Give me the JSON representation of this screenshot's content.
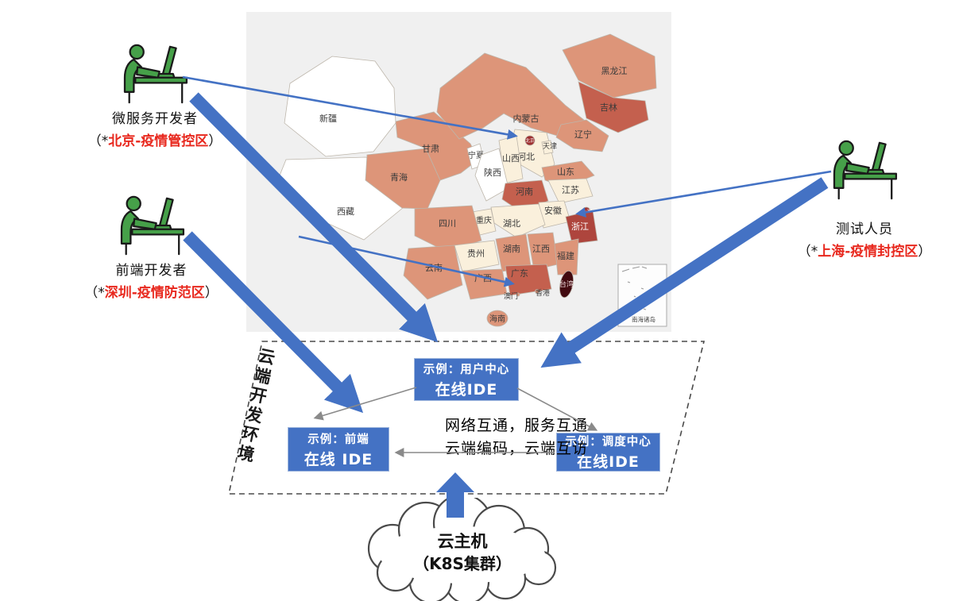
{
  "colors": {
    "accent_blue": "#4472C4",
    "alert_red": "#e8281e",
    "person_green": "#46a049",
    "connector_gray": "#8a8a8a",
    "map_palette": {
      "none": "#ffffff",
      "low": "#faf0dc",
      "mid": "#dd9579",
      "high": "#c4604e",
      "higher": "#ae453d",
      "city": "#9e2f2f",
      "max": "#420a10"
    }
  },
  "personas": [
    {
      "role": "微服务开发者",
      "location_prefix": "（*",
      "location": "北京-疫情管控区",
      "location_suffix": "）"
    },
    {
      "role": "前端开发者",
      "location_prefix": "（*",
      "location": "深圳-疫情防范区",
      "location_suffix": "）"
    },
    {
      "role": "测试人员",
      "location_prefix": "（*",
      "location": "上海-疫情封控区",
      "location_suffix": "）"
    }
  ],
  "map": {
    "inset_label": "南海诸岛",
    "provinces": [
      {
        "name": "新疆",
        "level": "none"
      },
      {
        "name": "西藏",
        "level": "none"
      },
      {
        "name": "青海",
        "level": "mid"
      },
      {
        "name": "甘肃",
        "level": "mid"
      },
      {
        "name": "内蒙古",
        "level": "mid"
      },
      {
        "name": "黑龙江",
        "level": "mid"
      },
      {
        "name": "吉林",
        "level": "high"
      },
      {
        "name": "辽宁",
        "level": "mid"
      },
      {
        "name": "河北",
        "level": "low"
      },
      {
        "name": "北京",
        "level": "city"
      },
      {
        "name": "天津",
        "level": "low"
      },
      {
        "name": "山西",
        "level": "low"
      },
      {
        "name": "山东",
        "level": "mid"
      },
      {
        "name": "宁夏",
        "level": "none"
      },
      {
        "name": "陕西",
        "level": "none"
      },
      {
        "name": "河南",
        "level": "high"
      },
      {
        "name": "江苏",
        "level": "low"
      },
      {
        "name": "安徽",
        "level": "low"
      },
      {
        "name": "上海",
        "level": "city"
      },
      {
        "name": "浙江",
        "level": "higher"
      },
      {
        "name": "湖北",
        "level": "low"
      },
      {
        "name": "重庆",
        "level": "low"
      },
      {
        "name": "四川",
        "level": "mid"
      },
      {
        "name": "湖南",
        "level": "mid"
      },
      {
        "name": "江西",
        "level": "mid"
      },
      {
        "name": "福建",
        "level": "mid"
      },
      {
        "name": "贵州",
        "level": "low"
      },
      {
        "name": "云南",
        "level": "mid"
      },
      {
        "name": "广西",
        "level": "mid"
      },
      {
        "name": "广东",
        "level": "high"
      },
      {
        "name": "香港",
        "level": "mid"
      },
      {
        "name": "澳门",
        "level": "mid"
      },
      {
        "name": "海南",
        "level": "mid"
      },
      {
        "name": "台湾",
        "level": "max"
      }
    ]
  },
  "env_box": {
    "label": "云端开发环境"
  },
  "ide_boxes": {
    "user_center": {
      "line1": "示例：用户中心",
      "line2": "在线IDE"
    },
    "front_end": {
      "line1": "示例：前端",
      "line2": "在线 IDE"
    },
    "dispatch": {
      "line1": "示例：调度中心",
      "line2": "在线IDE"
    }
  },
  "center_text": {
    "line1": "网络互通，服务互通",
    "line2": "云端编码，云端互访"
  },
  "cloud": {
    "line1": "云主机",
    "line2": "（K8S集群）"
  }
}
